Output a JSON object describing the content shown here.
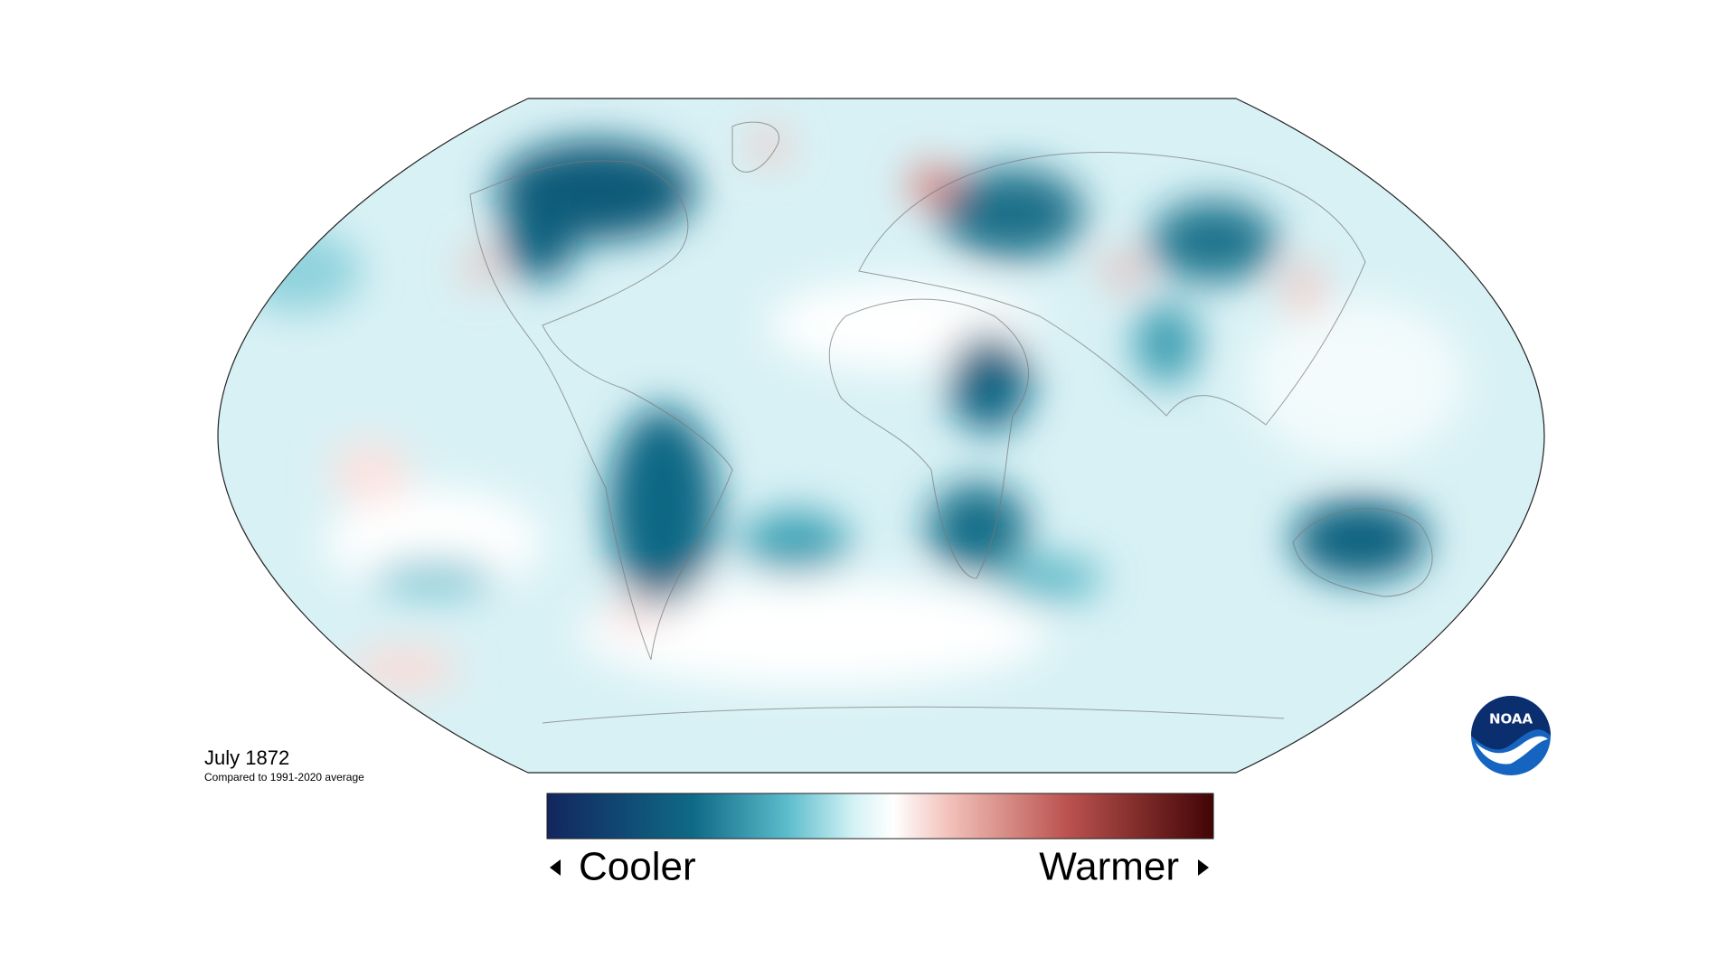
{
  "caption": {
    "title": "July 1872",
    "subtitle": "Compared to 1991-2020 average"
  },
  "legend": {
    "low": "Cooler",
    "high": "Warmer"
  },
  "logo": {
    "text": "NOAA"
  }
}
